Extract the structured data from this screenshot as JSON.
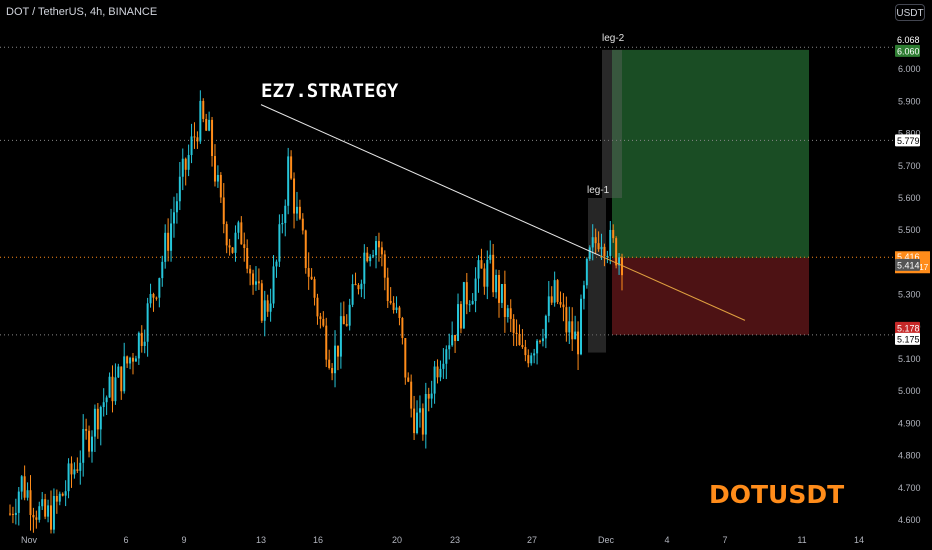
{
  "header": {
    "title": "DOT / TetherUS, 4h, BINANCE",
    "currency_button": "USDT"
  },
  "annotations": {
    "brand": "EZ7.STRATEGY",
    "symbol": "DOTUSDT",
    "leg1": "leg-1",
    "leg2": "leg-2"
  },
  "colors": {
    "background": "#000000",
    "up": "#26c6da",
    "down": "#ff8c1a",
    "profit_zone": "#1e5a2a",
    "loss_zone": "#5a1518",
    "trendline": "#e6e6e6",
    "price_tag": "#ff8c1a"
  },
  "chart_data": {
    "type": "candlestick",
    "title": "DOT / TetherUS, 4h, BINANCE",
    "x_tick_labels": [
      "Nov",
      "6",
      "9",
      "13",
      "16",
      "20",
      "23",
      "27",
      "Dec",
      "4",
      "7",
      "11",
      "14"
    ],
    "y_tick_labels": [
      "4.600",
      "4.700",
      "4.800",
      "4.900",
      "5.000",
      "5.100",
      "5.200",
      "5.300",
      "5.400",
      "5.500",
      "5.600",
      "5.700",
      "5.800",
      "5.900",
      "6.000"
    ],
    "ylim": [
      4.57,
      6.08
    ],
    "price_path": [
      4.62,
      4.72,
      4.66,
      4.6,
      4.63,
      4.7,
      4.78,
      4.86,
      4.95,
      5.0,
      5.05,
      5.12,
      5.2,
      5.32,
      5.45,
      5.6,
      5.72,
      5.85,
      5.78,
      5.55,
      5.45,
      5.5,
      5.3,
      5.25,
      5.4,
      5.7,
      5.5,
      5.35,
      5.2,
      5.1,
      5.2,
      5.3,
      5.45,
      5.48,
      5.3,
      5.2,
      4.95,
      4.88,
      5.05,
      5.15,
      5.2,
      5.3,
      5.35,
      5.38,
      5.3,
      5.2,
      5.1,
      5.15,
      5.22,
      5.3,
      5.2,
      5.15,
      5.4,
      5.5,
      5.45,
      5.42
    ],
    "trendline": {
      "from": {
        "x": "13",
        "y": 5.89
      },
      "to": {
        "x": "11",
        "y": 5.22
      }
    },
    "levels": {
      "target_marker": 6.068,
      "target": 6.06,
      "resistance": 5.779,
      "last_price": 5.416,
      "entry": 5.414,
      "stop_marker": 5.178,
      "stop": 5.175
    },
    "countdown": "02:44:17",
    "position": {
      "type": "long",
      "entry": 5.414,
      "target": 6.06,
      "stop": 5.175
    }
  }
}
